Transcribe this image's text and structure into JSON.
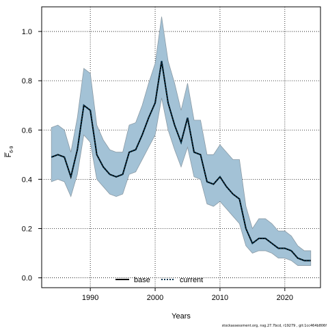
{
  "chart_data": {
    "type": "line",
    "xlabel": "Years",
    "ylabel_main": "F",
    "ylabel_sub": "6-9",
    "xlim": [
      1982.5,
      2025.5
    ],
    "ylim": [
      -0.04,
      1.1
    ],
    "xticks": [
      1990,
      2000,
      2010,
      2020
    ],
    "yticks": [
      0.0,
      0.2,
      0.4,
      0.6,
      0.8,
      1.0
    ],
    "ytick_labels": [
      "0.0",
      "0.2",
      "0.4",
      "0.6",
      "0.8",
      "1.0"
    ],
    "grid": true,
    "legend_position": "bottom-center",
    "x": [
      1984,
      1985,
      1986,
      1987,
      1988,
      1989,
      1990,
      1991,
      1992,
      1993,
      1994,
      1995,
      1996,
      1997,
      1998,
      1999,
      2000,
      2001,
      2002,
      2003,
      2004,
      2005,
      2006,
      2007,
      2008,
      2009,
      2010,
      2011,
      2012,
      2013,
      2014,
      2015,
      2016,
      2017,
      2018,
      2019,
      2020,
      2021,
      2022,
      2023,
      2024
    ],
    "series": [
      {
        "name": "base",
        "style": "solid",
        "color": "#000000",
        "values": [
          0.49,
          0.5,
          0.49,
          0.41,
          0.52,
          0.7,
          0.68,
          0.5,
          0.45,
          0.42,
          0.41,
          0.42,
          0.51,
          0.52,
          0.58,
          0.65,
          0.71,
          0.88,
          0.71,
          0.62,
          0.55,
          0.65,
          0.51,
          0.5,
          0.39,
          0.38,
          0.41,
          0.37,
          0.34,
          0.32,
          0.2,
          0.14,
          0.16,
          0.16,
          0.14,
          0.12,
          0.12,
          0.11,
          0.08,
          0.07,
          0.07
        ]
      },
      {
        "name": "current",
        "style": "dotted",
        "color": "#00334d",
        "values": [
          0.49,
          0.5,
          0.49,
          0.41,
          0.52,
          0.7,
          0.68,
          0.5,
          0.45,
          0.42,
          0.41,
          0.42,
          0.51,
          0.52,
          0.58,
          0.65,
          0.71,
          0.88,
          0.71,
          0.62,
          0.55,
          0.65,
          0.51,
          0.5,
          0.39,
          0.38,
          0.41,
          0.37,
          0.34,
          0.32,
          0.2,
          0.14,
          0.16,
          0.16,
          0.14,
          0.12,
          0.12,
          0.11,
          0.08,
          0.07,
          0.07
        ]
      }
    ],
    "band": {
      "color": "#a3c2d6",
      "upper": [
        0.61,
        0.62,
        0.6,
        0.51,
        0.65,
        0.85,
        0.83,
        0.62,
        0.56,
        0.52,
        0.51,
        0.51,
        0.62,
        0.63,
        0.7,
        0.79,
        0.87,
        1.06,
        0.88,
        0.79,
        0.68,
        0.79,
        0.64,
        0.64,
        0.5,
        0.5,
        0.54,
        0.51,
        0.48,
        0.48,
        0.29,
        0.2,
        0.24,
        0.24,
        0.22,
        0.19,
        0.19,
        0.17,
        0.13,
        0.11,
        0.11
      ],
      "lower": [
        0.39,
        0.4,
        0.39,
        0.33,
        0.42,
        0.58,
        0.55,
        0.4,
        0.37,
        0.34,
        0.33,
        0.34,
        0.42,
        0.43,
        0.48,
        0.53,
        0.58,
        0.73,
        0.6,
        0.52,
        0.45,
        0.53,
        0.41,
        0.4,
        0.3,
        0.29,
        0.31,
        0.28,
        0.25,
        0.22,
        0.13,
        0.1,
        0.11,
        0.11,
        0.1,
        0.08,
        0.08,
        0.07,
        0.05,
        0.05,
        0.05
      ]
    }
  },
  "footnote": "stockassessment.org, nsg.27.7bcd, r19279 , git:1cc464b806f"
}
